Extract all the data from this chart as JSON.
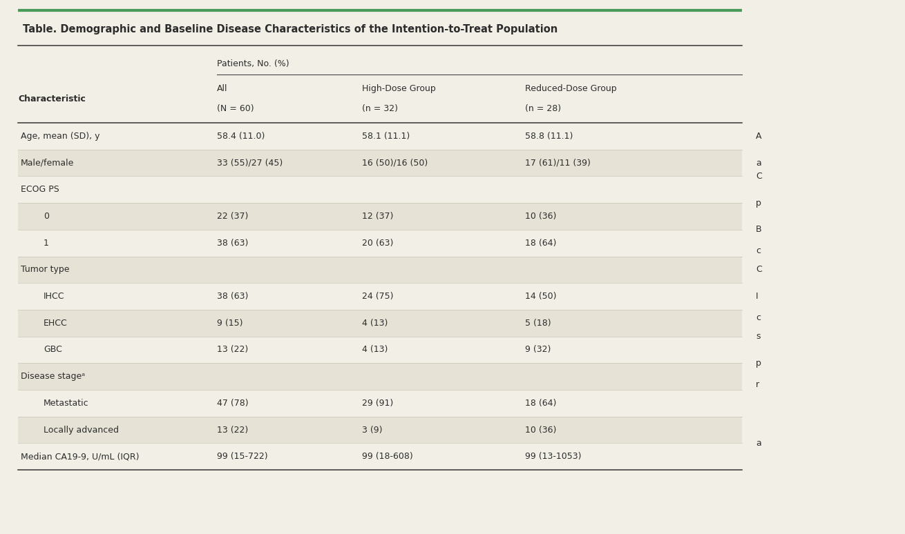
{
  "title": "Table. Demographic and Baseline Disease Characteristics of the Intention-to-Treat Population",
  "patients_header": "Patients, No. (%)",
  "col_headers": [
    "Characteristic",
    "All\n(N = 60)",
    "High-Dose Group\n(n = 32)",
    "Reduced-Dose Group\n(n = 28)"
  ],
  "rows": [
    {
      "label": "Age, mean (SD), y",
      "indent": 0,
      "values": [
        "58.4 (11.0)",
        "58.1 (11.1)",
        "58.8 (11.1)"
      ],
      "shaded": false,
      "category": false
    },
    {
      "label": "Male/female",
      "indent": 0,
      "values": [
        "33 (55)/27 (45)",
        "16 (50)/16 (50)",
        "17 (61)/11 (39)"
      ],
      "shaded": true,
      "category": false
    },
    {
      "label": "ECOG PS",
      "indent": 0,
      "values": [
        "",
        "",
        ""
      ],
      "shaded": false,
      "category": true
    },
    {
      "label": "0",
      "indent": 1,
      "values": [
        "22 (37)",
        "12 (37)",
        "10 (36)"
      ],
      "shaded": true,
      "category": false
    },
    {
      "label": "1",
      "indent": 1,
      "values": [
        "38 (63)",
        "20 (63)",
        "18 (64)"
      ],
      "shaded": false,
      "category": false
    },
    {
      "label": "Tumor type",
      "indent": 0,
      "values": [
        "",
        "",
        ""
      ],
      "shaded": true,
      "category": true
    },
    {
      "label": "IHCC",
      "indent": 1,
      "values": [
        "38 (63)",
        "24 (75)",
        "14 (50)"
      ],
      "shaded": false,
      "category": false
    },
    {
      "label": "EHCC",
      "indent": 1,
      "values": [
        "9 (15)",
        "4 (13)",
        "5 (18)"
      ],
      "shaded": true,
      "category": false
    },
    {
      "label": "GBC",
      "indent": 1,
      "values": [
        "13 (22)",
        "4 (13)",
        "9 (32)"
      ],
      "shaded": false,
      "category": false
    },
    {
      "label": "Disease stageᵃ",
      "indent": 0,
      "values": [
        "",
        "",
        ""
      ],
      "shaded": true,
      "category": true
    },
    {
      "label": "Metastatic",
      "indent": 1,
      "values": [
        "47 (78)",
        "29 (91)",
        "18 (64)"
      ],
      "shaded": false,
      "category": false
    },
    {
      "label": "Locally advanced",
      "indent": 1,
      "values": [
        "13 (22)",
        "3 (9)",
        "10 (36)"
      ],
      "shaded": true,
      "category": false
    },
    {
      "label": "Median CA19-9, U/mL (IQR)",
      "indent": 0,
      "values": [
        "99 (15-722)",
        "99 (18-608)",
        "99 (13-1053)"
      ],
      "shaded": false,
      "category": false
    }
  ],
  "bg_color": "#f2f0e6",
  "shaded_color": "#e6e3d6",
  "text_color": "#2c2c2c",
  "green_line_color": "#4a9a5a",
  "dark_line_color": "#444444",
  "light_line_color": "#c8c5b5",
  "annotation_lines": [
    "A",
    "a",
    "C",
    "p",
    "B",
    "c",
    "C",
    "I",
    "c",
    "s",
    "p",
    "r",
    "a"
  ]
}
